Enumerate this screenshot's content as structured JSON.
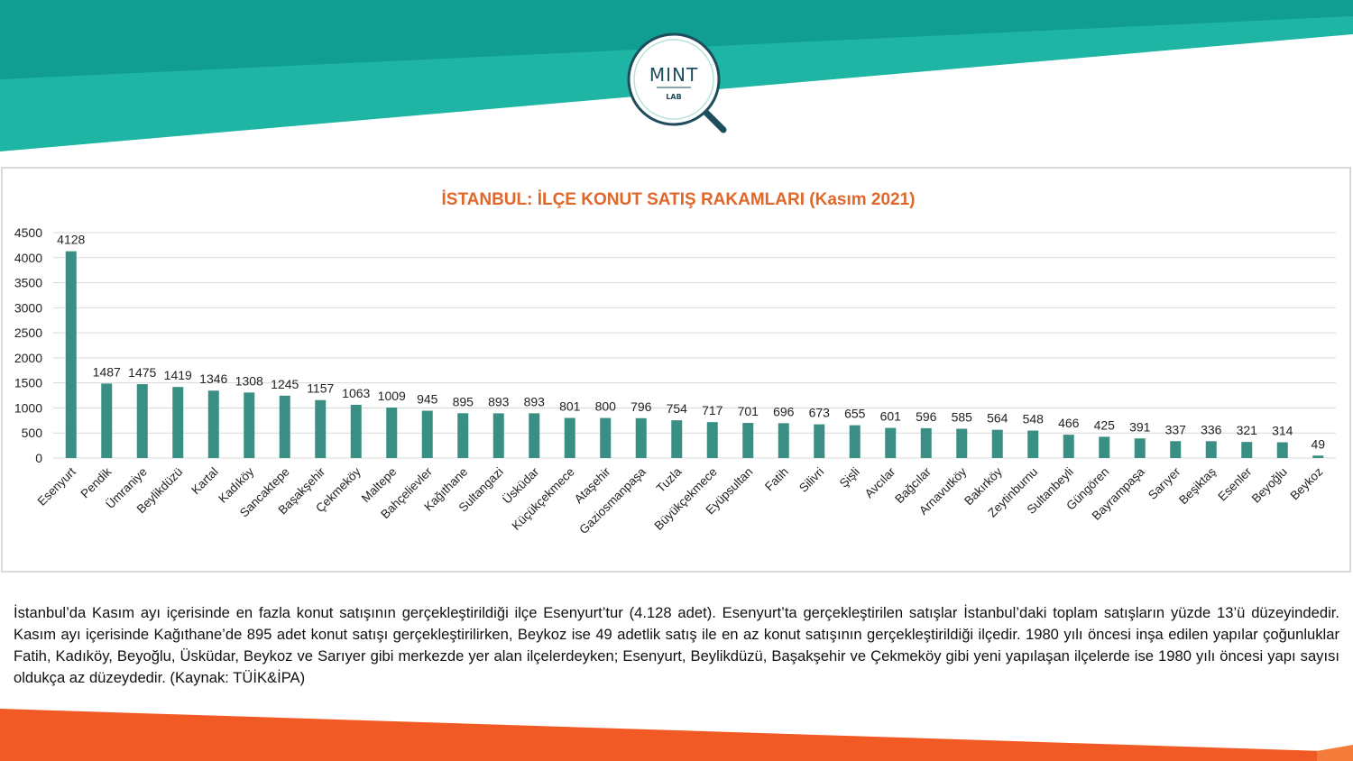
{
  "logo": {
    "text": "MINT",
    "subtext": "LAB"
  },
  "description": "İstanbul’da Kasım ayı içerisinde en fazla konut satışının gerçekleştirildiği ilçe Esenyurt’tur (4.128 adet). Esenyurt’ta gerçekleştirilen satışlar İstanbul’daki toplam satışların yüzde 13’ü düzeyindedir. Kasım ayı içerisinde Kağıthane’de 895 adet konut satışı gerçekleştirilirken, Beykoz ise 49 adetlik satış ile en az konut satışının gerçekleştirildiği ilçedir. 1980 yılı öncesi inşa edilen yapılar çoğunluklar Fatih, Kadıköy, Beyoğlu, Üsküdar, Beykoz ve Sarıyer gibi merkezde yer alan ilçelerdeyken; Esenyurt, Beylikdüzü, Başakşehir ve Çekmeköy gibi yeni yapılaşan ilçelerde ise 1980 yılı öncesi yapı sayısı oldukça az düzeydedir.  (Kaynak: TÜİK&İPA)",
  "colors": {
    "teal_dark": "#109d92",
    "teal_light": "#1fb5a4",
    "bar": "#3a8f84",
    "title": "#e0672a",
    "orange": "#f15a24",
    "orange_light": "#f47b3a",
    "grid": "#d9d9d9"
  },
  "chart_data": {
    "type": "bar",
    "title": "İSTANBUL: İLÇE KONUT SATIŞ RAKAMLARI (Kasım 2021)",
    "ylim": [
      0,
      4500
    ],
    "yticks": [
      0,
      500,
      1000,
      1500,
      2000,
      2500,
      3000,
      3500,
      4000,
      4500
    ],
    "grid": true,
    "categories": [
      "Esenyurt",
      "Pendik",
      "Ümraniye",
      "Beylikdüzü",
      "Kartal",
      "Kadıköy",
      "Sancaktepe",
      "Başakşehir",
      "Çekmeköy",
      "Maltepe",
      "Bahçelievler",
      "Kağıthane",
      "Sultangazi",
      "Üsküdar",
      "Küçükçekmece",
      "Ataşehir",
      "Gaziosmanpaşa",
      "Tuzla",
      "Büyükçekmece",
      "Eyüpsultan",
      "Fatih",
      "Silivri",
      "Şişli",
      "Avcılar",
      "Bağcılar",
      "Arnavutköy",
      "Bakırköy",
      "Zeytinburnu",
      "Sultanbeyli",
      "Güngören",
      "Bayrampaşa",
      "Sarıyer",
      "Beşiktaş",
      "Esenler",
      "Beyoğlu",
      "Beykoz"
    ],
    "values": [
      4128,
      1487,
      1475,
      1419,
      1346,
      1308,
      1245,
      1157,
      1063,
      1009,
      945,
      895,
      893,
      893,
      801,
      800,
      796,
      754,
      717,
      701,
      696,
      673,
      655,
      601,
      596,
      585,
      564,
      548,
      466,
      425,
      391,
      337,
      336,
      321,
      314,
      49
    ]
  }
}
